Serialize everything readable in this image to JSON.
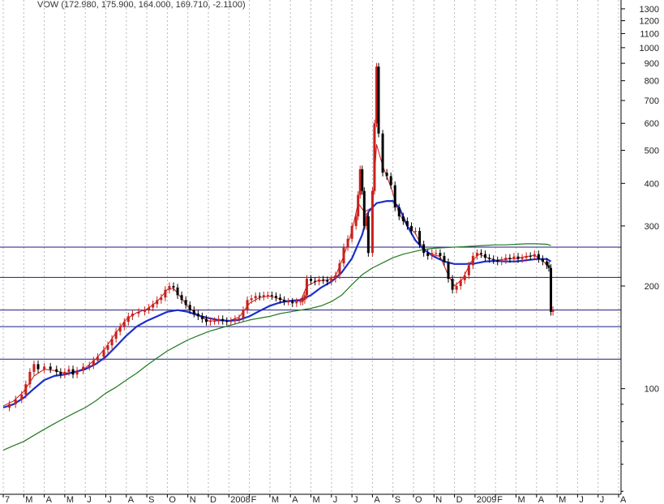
{
  "header": {
    "ticker_line": "VOW (172.980, 175.900, 164.000, 169.710, -2.1100)"
  },
  "chart_data": {
    "type": "candlestick",
    "symbol": "VOW",
    "ohlc_last": {
      "open": 172.98,
      "high": 175.9,
      "low": 164.0,
      "close": 169.71,
      "change": -2.11
    },
    "y_scale": "log",
    "ylim": [
      49,
      1380
    ],
    "grid": "vertical dotted at month boundaries",
    "y_tick_labels": [
      "1300",
      "1200",
      "1100",
      "1000",
      "900",
      "800",
      "700",
      "600",
      "500",
      "400",
      "300",
      "200",
      "100"
    ],
    "y_ticks": [
      1300,
      1200,
      1100,
      1000,
      900,
      800,
      700,
      600,
      500,
      400,
      300,
      200,
      100
    ],
    "x_tick_labels": [
      "7",
      "M",
      "A",
      "M",
      "J",
      "J",
      "A",
      "S",
      "O",
      "N",
      "D",
      "2008",
      "F",
      "M",
      "A",
      "M",
      "J",
      "J",
      "A",
      "S",
      "O",
      "N",
      "D",
      "2009",
      "F",
      "M",
      "A",
      "M",
      "J",
      "J",
      "A"
    ],
    "x_tick_months": [
      0,
      1,
      2,
      3,
      4,
      5,
      6,
      7,
      8,
      9,
      10,
      11,
      12,
      13,
      14,
      15,
      16,
      17,
      18,
      19,
      20,
      21,
      22,
      23,
      24,
      25,
      26,
      27,
      28,
      29,
      30
    ],
    "horizontal_levels": [
      260,
      212,
      170,
      152,
      122
    ],
    "price_points": [
      [
        0.0,
        88
      ],
      [
        0.3,
        90
      ],
      [
        0.6,
        93
      ],
      [
        0.9,
        96
      ],
      [
        1.1,
        103
      ],
      [
        1.3,
        112
      ],
      [
        1.5,
        118
      ],
      [
        1.7,
        114
      ],
      [
        2.0,
        116
      ],
      [
        2.3,
        114
      ],
      [
        2.6,
        112
      ],
      [
        2.8,
        110
      ],
      [
        3.0,
        112
      ],
      [
        3.2,
        114
      ],
      [
        3.4,
        110
      ],
      [
        3.6,
        113
      ],
      [
        3.9,
        116
      ],
      [
        4.2,
        117
      ],
      [
        4.4,
        121
      ],
      [
        4.6,
        124
      ],
      [
        4.9,
        130
      ],
      [
        5.1,
        134
      ],
      [
        5.3,
        140
      ],
      [
        5.5,
        147
      ],
      [
        5.7,
        152
      ],
      [
        5.9,
        157
      ],
      [
        6.1,
        163
      ],
      [
        6.3,
        166
      ],
      [
        6.6,
        168
      ],
      [
        6.9,
        170
      ],
      [
        7.1,
        173
      ],
      [
        7.3,
        177
      ],
      [
        7.5,
        182
      ],
      [
        7.7,
        185
      ],
      [
        7.9,
        195
      ],
      [
        8.1,
        200
      ],
      [
        8.3,
        198
      ],
      [
        8.5,
        188
      ],
      [
        8.7,
        182
      ],
      [
        8.9,
        176
      ],
      [
        9.1,
        170
      ],
      [
        9.3,
        166
      ],
      [
        9.5,
        163
      ],
      [
        9.7,
        160
      ],
      [
        9.9,
        157
      ],
      [
        10.1,
        158
      ],
      [
        10.3,
        158
      ],
      [
        10.5,
        160
      ],
      [
        10.7,
        158
      ],
      [
        10.9,
        157
      ],
      [
        11.1,
        158
      ],
      [
        11.3,
        160
      ],
      [
        11.5,
        161
      ],
      [
        11.7,
        170
      ],
      [
        11.9,
        182
      ],
      [
        12.1,
        184
      ],
      [
        12.3,
        187
      ],
      [
        12.5,
        186
      ],
      [
        12.7,
        188
      ],
      [
        12.9,
        188
      ],
      [
        13.1,
        187
      ],
      [
        13.3,
        185
      ],
      [
        13.5,
        182
      ],
      [
        13.7,
        180
      ],
      [
        13.9,
        180
      ],
      [
        14.1,
        178
      ],
      [
        14.3,
        180
      ],
      [
        14.5,
        180
      ],
      [
        14.6,
        182
      ],
      [
        14.7,
        188
      ],
      [
        14.8,
        210
      ],
      [
        15.0,
        207
      ],
      [
        15.2,
        206
      ],
      [
        15.4,
        209
      ],
      [
        15.6,
        208
      ],
      [
        15.8,
        206
      ],
      [
        16.0,
        210
      ],
      [
        16.2,
        215
      ],
      [
        16.4,
        233
      ],
      [
        16.6,
        260
      ],
      [
        16.8,
        275
      ],
      [
        17.0,
        300
      ],
      [
        17.2,
        320
      ],
      [
        17.3,
        370
      ],
      [
        17.4,
        440
      ],
      [
        17.5,
        380
      ],
      [
        17.6,
        300
      ],
      [
        17.7,
        320
      ],
      [
        17.8,
        250
      ],
      [
        18.0,
        380
      ],
      [
        18.1,
        600
      ],
      [
        18.2,
        880
      ],
      [
        18.3,
        560
      ],
      [
        18.5,
        430
      ],
      [
        18.7,
        420
      ],
      [
        18.9,
        395
      ],
      [
        19.1,
        340
      ],
      [
        19.3,
        320
      ],
      [
        19.5,
        310
      ],
      [
        19.7,
        300
      ],
      [
        19.9,
        290
      ],
      [
        20.1,
        290
      ],
      [
        20.3,
        265
      ],
      [
        20.5,
        250
      ],
      [
        20.7,
        245
      ],
      [
        20.9,
        250
      ],
      [
        21.1,
        250
      ],
      [
        21.3,
        245
      ],
      [
        21.5,
        235
      ],
      [
        21.7,
        210
      ],
      [
        21.9,
        195
      ],
      [
        22.1,
        200
      ],
      [
        22.3,
        208
      ],
      [
        22.5,
        215
      ],
      [
        22.7,
        230
      ],
      [
        22.9,
        245
      ],
      [
        23.1,
        250
      ],
      [
        23.3,
        248
      ],
      [
        23.5,
        242
      ],
      [
        23.7,
        240
      ],
      [
        23.9,
        238
      ],
      [
        24.1,
        236
      ],
      [
        24.3,
        238
      ],
      [
        24.5,
        242
      ],
      [
        24.7,
        240
      ],
      [
        24.9,
        244
      ],
      [
        25.1,
        240
      ],
      [
        25.3,
        242
      ],
      [
        25.5,
        245
      ],
      [
        25.7,
        244
      ],
      [
        25.9,
        248
      ],
      [
        26.1,
        240
      ],
      [
        26.3,
        236
      ],
      [
        26.5,
        230
      ],
      [
        26.6,
        226
      ],
      [
        26.7,
        168
      ],
      [
        26.8,
        170
      ]
    ],
    "ma_fast": [
      [
        0.0,
        88
      ],
      [
        0.5,
        90
      ],
      [
        1.0,
        94
      ],
      [
        1.5,
        100
      ],
      [
        2.0,
        106
      ],
      [
        2.5,
        109
      ],
      [
        3.0,
        110
      ],
      [
        3.5,
        112
      ],
      [
        4.0,
        114
      ],
      [
        4.5,
        118
      ],
      [
        5.0,
        124
      ],
      [
        5.5,
        133
      ],
      [
        6.0,
        143
      ],
      [
        6.5,
        152
      ],
      [
        7.0,
        158
      ],
      [
        7.5,
        163
      ],
      [
        8.0,
        168
      ],
      [
        8.5,
        170
      ],
      [
        9.0,
        168
      ],
      [
        9.5,
        164
      ],
      [
        10.0,
        161
      ],
      [
        10.5,
        159
      ],
      [
        11.0,
        158
      ],
      [
        11.5,
        159
      ],
      [
        12.0,
        163
      ],
      [
        12.5,
        169
      ],
      [
        13.0,
        175
      ],
      [
        13.5,
        179
      ],
      [
        14.0,
        181
      ],
      [
        14.5,
        182
      ],
      [
        15.0,
        188
      ],
      [
        15.5,
        198
      ],
      [
        16.0,
        206
      ],
      [
        16.5,
        219
      ],
      [
        17.0,
        241
      ],
      [
        17.5,
        283
      ],
      [
        17.8,
        330
      ],
      [
        18.2,
        350
      ],
      [
        18.7,
        355
      ],
      [
        19.0,
        355
      ],
      [
        19.3,
        340
      ],
      [
        19.7,
        300
      ],
      [
        20.1,
        272
      ],
      [
        20.5,
        256
      ],
      [
        21.0,
        244
      ],
      [
        21.5,
        236
      ],
      [
        22.0,
        232
      ],
      [
        22.5,
        232
      ],
      [
        23.0,
        233
      ],
      [
        23.5,
        236
      ],
      [
        24.0,
        237
      ],
      [
        24.5,
        236
      ],
      [
        25.0,
        236
      ],
      [
        25.5,
        238
      ],
      [
        26.0,
        240
      ],
      [
        26.5,
        240
      ],
      [
        26.7,
        236
      ]
    ],
    "ma_slow": [
      [
        0.0,
        66
      ],
      [
        0.5,
        68
      ],
      [
        1.0,
        70
      ],
      [
        1.5,
        73
      ],
      [
        2.0,
        76
      ],
      [
        2.5,
        79
      ],
      [
        3.0,
        82
      ],
      [
        3.5,
        85
      ],
      [
        4.0,
        88
      ],
      [
        4.5,
        92
      ],
      [
        5.0,
        97
      ],
      [
        5.5,
        101
      ],
      [
        6.0,
        106
      ],
      [
        6.5,
        111
      ],
      [
        7.0,
        117
      ],
      [
        7.5,
        123
      ],
      [
        8.0,
        129
      ],
      [
        8.5,
        134
      ],
      [
        9.0,
        139
      ],
      [
        9.5,
        143
      ],
      [
        10.0,
        147
      ],
      [
        10.5,
        150
      ],
      [
        11.0,
        153
      ],
      [
        11.5,
        156
      ],
      [
        12.0,
        159
      ],
      [
        12.5,
        161
      ],
      [
        13.0,
        163
      ],
      [
        13.5,
        166
      ],
      [
        14.0,
        168
      ],
      [
        14.5,
        170
      ],
      [
        15.0,
        172
      ],
      [
        15.5,
        175
      ],
      [
        16.0,
        180
      ],
      [
        16.5,
        188
      ],
      [
        17.0,
        202
      ],
      [
        17.5,
        216
      ],
      [
        18.0,
        226
      ],
      [
        18.5,
        234
      ],
      [
        19.0,
        242
      ],
      [
        19.5,
        248
      ],
      [
        20.0,
        252
      ],
      [
        20.5,
        256
      ],
      [
        21.0,
        258
      ],
      [
        21.5,
        259
      ],
      [
        22.0,
        260
      ],
      [
        22.5,
        261
      ],
      [
        23.0,
        262
      ],
      [
        23.5,
        263
      ],
      [
        24.0,
        264
      ],
      [
        24.5,
        264
      ],
      [
        25.0,
        265
      ],
      [
        25.5,
        266
      ],
      [
        26.0,
        266
      ],
      [
        26.5,
        265
      ],
      [
        26.7,
        263
      ]
    ],
    "ma_red": [
      [
        0.0,
        89
      ],
      [
        0.5,
        92
      ],
      [
        1.0,
        98
      ],
      [
        1.5,
        109
      ],
      [
        2.0,
        114
      ],
      [
        2.5,
        113
      ],
      [
        3.0,
        111
      ],
      [
        3.5,
        112
      ],
      [
        4.0,
        115
      ],
      [
        4.5,
        122
      ],
      [
        5.0,
        132
      ],
      [
        5.5,
        146
      ],
      [
        6.0,
        160
      ],
      [
        6.5,
        167
      ],
      [
        7.0,
        171
      ],
      [
        7.5,
        180
      ],
      [
        8.0,
        195
      ],
      [
        8.3,
        197
      ],
      [
        8.7,
        184
      ],
      [
        9.0,
        174
      ],
      [
        9.5,
        164
      ],
      [
        10.0,
        158
      ],
      [
        10.5,
        158
      ],
      [
        11.0,
        158
      ],
      [
        11.5,
        162
      ],
      [
        12.0,
        178
      ],
      [
        12.5,
        185
      ],
      [
        13.0,
        187
      ],
      [
        13.5,
        183
      ],
      [
        14.0,
        180
      ],
      [
        14.5,
        181
      ],
      [
        14.8,
        200
      ],
      [
        15.3,
        207
      ],
      [
        15.8,
        208
      ],
      [
        16.2,
        214
      ],
      [
        16.6,
        245
      ],
      [
        17.0,
        290
      ],
      [
        17.3,
        350
      ],
      [
        17.6,
        330
      ],
      [
        18.0,
        340
      ],
      [
        18.2,
        520
      ],
      [
        18.5,
        450
      ],
      [
        18.9,
        390
      ],
      [
        19.3,
        325
      ],
      [
        19.7,
        300
      ],
      [
        20.1,
        285
      ],
      [
        20.5,
        255
      ],
      [
        20.9,
        248
      ],
      [
        21.3,
        244
      ],
      [
        21.7,
        215
      ],
      [
        22.0,
        200
      ],
      [
        22.4,
        210
      ],
      [
        22.8,
        235
      ],
      [
        23.2,
        248
      ],
      [
        23.6,
        242
      ],
      [
        24.0,
        238
      ],
      [
        24.5,
        240
      ],
      [
        25.0,
        241
      ],
      [
        25.5,
        244
      ],
      [
        25.9,
        246
      ],
      [
        26.3,
        237
      ],
      [
        26.6,
        228
      ]
    ],
    "colors": {
      "candle_up": "#c8201a",
      "candle_down": "#000000",
      "ma_fast": "#1a2fcc",
      "ma_slow": "#1f7a1f",
      "ma_red": "#cc1818",
      "levels": "#1a1a80",
      "grid": "#b8b8b8",
      "axis_text": "#222222"
    }
  }
}
